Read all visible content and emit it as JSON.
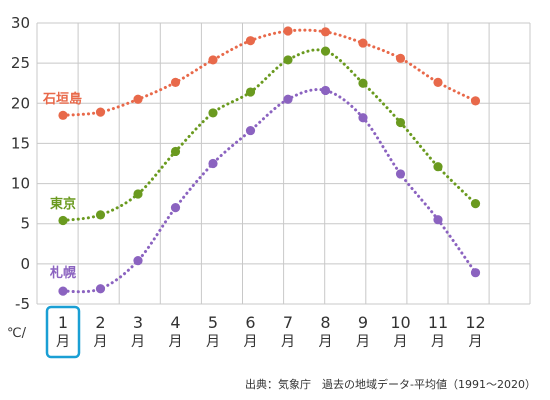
{
  "chart_data": {
    "type": "line",
    "categories": [
      {
        "num": "1",
        "unit": "月"
      },
      {
        "num": "2",
        "unit": "月"
      },
      {
        "num": "3",
        "unit": "月"
      },
      {
        "num": "4",
        "unit": "月"
      },
      {
        "num": "5",
        "unit": "月"
      },
      {
        "num": "6",
        "unit": "月"
      },
      {
        "num": "7",
        "unit": "月"
      },
      {
        "num": "8",
        "unit": "月"
      },
      {
        "num": "9",
        "unit": "月"
      },
      {
        "num": "10",
        "unit": "月"
      },
      {
        "num": "11",
        "unit": "月"
      },
      {
        "num": "12",
        "unit": "月"
      }
    ],
    "y_unit_label": "℃/",
    "ylim": [
      -5,
      30
    ],
    "yticks": [
      -5,
      0,
      5,
      10,
      15,
      20,
      25,
      30
    ],
    "grid": true,
    "highlighted_category_index": 0,
    "highlight_color": "#1a9fd4",
    "series": [
      {
        "name": "石垣島",
        "color": "#e8694a",
        "values": [
          18.5,
          18.9,
          20.5,
          22.6,
          25.4,
          27.8,
          29.0,
          28.9,
          27.5,
          25.6,
          22.6,
          20.3
        ]
      },
      {
        "name": "東京",
        "color": "#6a9a1f",
        "values": [
          5.4,
          6.1,
          8.7,
          14.0,
          18.8,
          21.4,
          25.4,
          26.5,
          22.5,
          17.6,
          12.1,
          7.5
        ]
      },
      {
        "name": "札幌",
        "color": "#8b63c0",
        "values": [
          -3.4,
          -3.1,
          0.4,
          7.0,
          12.5,
          16.6,
          20.5,
          21.6,
          18.2,
          11.2,
          5.5,
          -1.1
        ]
      }
    ]
  },
  "source_text": "出典：気象庁　過去の地域データ-平均値（1991～2020）"
}
